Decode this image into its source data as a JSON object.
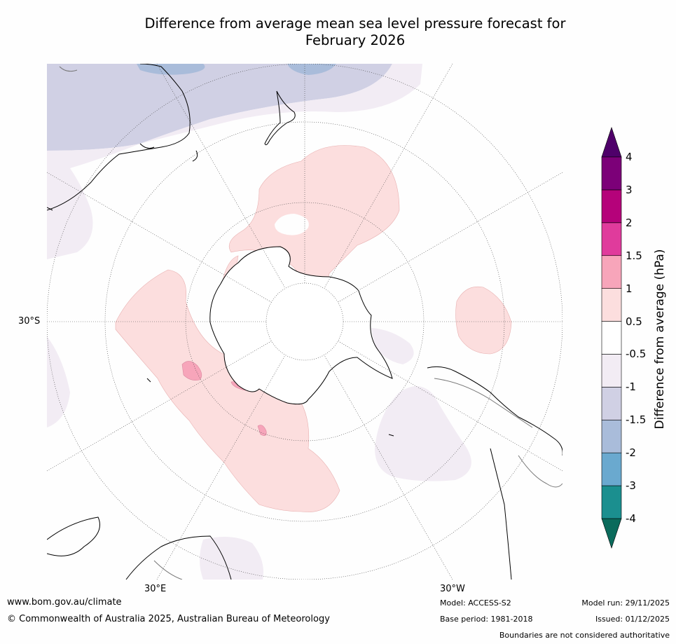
{
  "title": {
    "line1": "Difference from average mean sea level pressure forecast for",
    "line2": "February 2026"
  },
  "map": {
    "projection": "south-polar",
    "lat_label": "30°S",
    "lon_labels": [
      "30°E",
      "30°W"
    ]
  },
  "colorbar": {
    "title": "Difference from average (hPa)",
    "levels": [
      "-4",
      "-3",
      "-2",
      "-1.5",
      "-1",
      "-0.5",
      "0.5",
      "1",
      "1.5",
      "2",
      "3",
      "4"
    ],
    "colors": [
      "#1b8f8f",
      "#6aa9cf",
      "#a9bcda",
      "#d0d0e4",
      "#f2ecf4",
      "#ffffff",
      "#fcdede",
      "#f7a5ba",
      "#e03b9c",
      "#b5027a",
      "#7c0078"
    ],
    "under_color": "#0b6b5c",
    "over_color": "#4f006a"
  },
  "footer": {
    "url": "www.bom.gov.au/climate",
    "copyright": "© Commonwealth of Australia 2025, Australian Bureau of Meteorology",
    "model": "Model: ACCESS-S2",
    "base_period": "Base period: 1981-2018",
    "model_run": "Model run: 29/11/2025",
    "issued": "Issued: 01/12/2025",
    "disclaimer": "Boundaries are not considered authoritative"
  }
}
